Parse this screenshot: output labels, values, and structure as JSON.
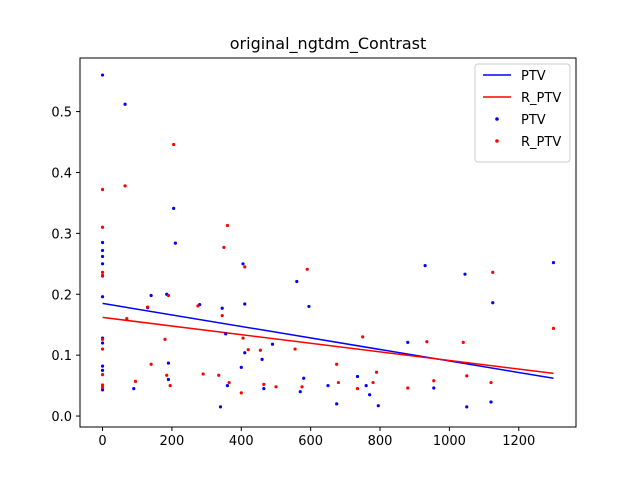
{
  "chart_data": {
    "type": "scatter",
    "title": "original_ngtdm_Contrast",
    "xlabel": "",
    "ylabel": "",
    "xlim": [
      -65,
      1365
    ],
    "ylim": [
      -0.018,
      0.588
    ],
    "x_ticks": [
      0,
      200,
      400,
      600,
      800,
      1000,
      1200
    ],
    "y_ticks": [
      0.0,
      0.1,
      0.2,
      0.3,
      0.4,
      0.5
    ],
    "grid": false,
    "legend_position": "top-right",
    "legend_entries": [
      {
        "label": "PTV",
        "kind": "line",
        "color": "#0000ff"
      },
      {
        "label": "R_PTV",
        "kind": "line",
        "color": "#ff0000"
      },
      {
        "label": "PTV",
        "kind": "marker",
        "color": "#0000ff"
      },
      {
        "label": "R_PTV",
        "kind": "marker",
        "color": "#ff0000"
      }
    ],
    "series": [
      {
        "name": "PTV",
        "color": "#0000ff",
        "trend": {
          "x": [
            0,
            1300
          ],
          "y": [
            0.185,
            0.062
          ]
        },
        "points": [
          [
            0,
            0.56
          ],
          [
            0,
            0.285
          ],
          [
            0,
            0.272
          ],
          [
            0,
            0.262
          ],
          [
            0,
            0.25
          ],
          [
            0,
            0.23
          ],
          [
            0,
            0.196
          ],
          [
            0,
            0.128
          ],
          [
            0,
            0.12
          ],
          [
            0,
            0.082
          ],
          [
            0,
            0.075
          ],
          [
            0,
            0.043
          ],
          [
            65,
            0.512
          ],
          [
            90,
            0.045
          ],
          [
            130,
            0.178
          ],
          [
            140,
            0.198
          ],
          [
            185,
            0.2
          ],
          [
            190,
            0.087
          ],
          [
            190,
            0.06
          ],
          [
            205,
            0.341
          ],
          [
            210,
            0.284
          ],
          [
            280,
            0.183
          ],
          [
            340,
            0.015
          ],
          [
            345,
            0.177
          ],
          [
            355,
            0.135
          ],
          [
            360,
            0.05
          ],
          [
            400,
            0.08
          ],
          [
            405,
            0.25
          ],
          [
            410,
            0.104
          ],
          [
            410,
            0.184
          ],
          [
            460,
            0.093
          ],
          [
            465,
            0.045
          ],
          [
            490,
            0.118
          ],
          [
            560,
            0.221
          ],
          [
            570,
            0.04
          ],
          [
            580,
            0.062
          ],
          [
            595,
            0.18
          ],
          [
            650,
            0.05
          ],
          [
            675,
            0.02
          ],
          [
            735,
            0.065
          ],
          [
            760,
            0.05
          ],
          [
            770,
            0.035
          ],
          [
            795,
            0.017
          ],
          [
            880,
            0.121
          ],
          [
            930,
            0.247
          ],
          [
            955,
            0.046
          ],
          [
            1045,
            0.233
          ],
          [
            1050,
            0.015
          ],
          [
            1120,
            0.023
          ],
          [
            1125,
            0.186
          ],
          [
            1300,
            0.252
          ]
        ]
      },
      {
        "name": "R_PTV",
        "color": "#ff0000",
        "trend": {
          "x": [
            0,
            1300
          ],
          "y": [
            0.162,
            0.07
          ]
        },
        "points": [
          [
            0,
            0.372
          ],
          [
            0,
            0.31
          ],
          [
            0,
            0.236
          ],
          [
            0,
            0.231
          ],
          [
            0,
            0.126
          ],
          [
            0,
            0.11
          ],
          [
            0,
            0.068
          ],
          [
            0,
            0.051
          ],
          [
            0,
            0.047
          ],
          [
            65,
            0.378
          ],
          [
            70,
            0.16
          ],
          [
            95,
            0.057
          ],
          [
            130,
            0.179
          ],
          [
            140,
            0.085
          ],
          [
            180,
            0.126
          ],
          [
            185,
            0.067
          ],
          [
            190,
            0.198
          ],
          [
            195,
            0.05
          ],
          [
            205,
            0.446
          ],
          [
            275,
            0.181
          ],
          [
            290,
            0.069
          ],
          [
            335,
            0.067
          ],
          [
            345,
            0.165
          ],
          [
            350,
            0.277
          ],
          [
            360,
            0.313
          ],
          [
            365,
            0.055
          ],
          [
            400,
            0.038
          ],
          [
            405,
            0.128
          ],
          [
            410,
            0.245
          ],
          [
            420,
            0.109
          ],
          [
            455,
            0.108
          ],
          [
            465,
            0.052
          ],
          [
            500,
            0.048
          ],
          [
            555,
            0.11
          ],
          [
            575,
            0.048
          ],
          [
            590,
            0.241
          ],
          [
            675,
            0.085
          ],
          [
            680,
            0.055
          ],
          [
            735,
            0.045
          ],
          [
            750,
            0.13
          ],
          [
            780,
            0.055
          ],
          [
            790,
            0.072
          ],
          [
            880,
            0.046
          ],
          [
            935,
            0.122
          ],
          [
            955,
            0.058
          ],
          [
            1040,
            0.121
          ],
          [
            1050,
            0.066
          ],
          [
            1120,
            0.055
          ],
          [
            1125,
            0.236
          ],
          [
            1300,
            0.144
          ]
        ]
      }
    ]
  }
}
